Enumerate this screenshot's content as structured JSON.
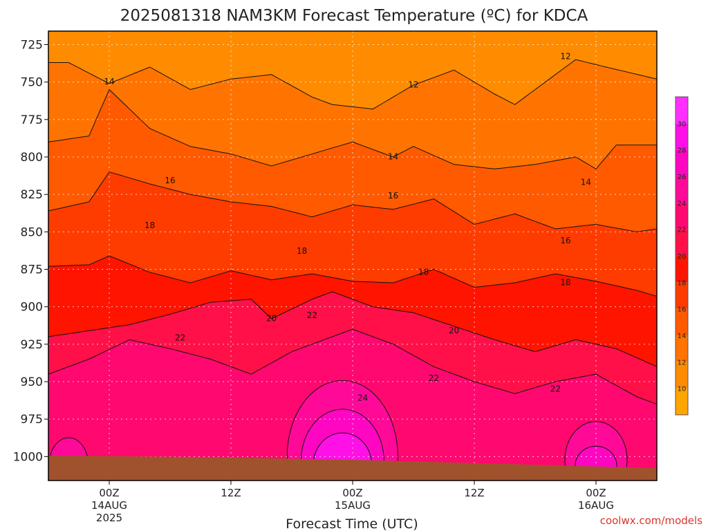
{
  "chart_data": {
    "type": "heatmap",
    "title": "2025081318 NAM3KM Forecast Temperature (ºC) for KDCA",
    "xlabel": "Forecast Time (UTC)",
    "ylabel": "",
    "y_ticks": [
      "725",
      "750",
      "775",
      "800",
      "825",
      "850",
      "875",
      "900",
      "925",
      "950",
      "975",
      "1000"
    ],
    "y_tick_values": [
      725,
      750,
      775,
      800,
      825,
      850,
      875,
      900,
      925,
      950,
      975,
      1000
    ],
    "ylim": [
      1016,
      716
    ],
    "x_ticks": [
      {
        "hours": 6,
        "line1": "00Z",
        "line2": "14AUG",
        "line3": "2025"
      },
      {
        "hours": 18,
        "line1": "12Z",
        "line2": "",
        "line3": ""
      },
      {
        "hours": 30,
        "line1": "00Z",
        "line2": "15AUG",
        "line3": ""
      },
      {
        "hours": 42,
        "line1": "12Z",
        "line2": "",
        "line3": ""
      },
      {
        "hours": 54,
        "line1": "00Z",
        "line2": "16AUG",
        "line3": ""
      }
    ],
    "xlim_hours": [
      0,
      60
    ],
    "x_is_forecast_hours_from": "2025081318",
    "grid": true,
    "colorbar": {
      "ticks": [
        "10",
        "12",
        "14",
        "16",
        "18",
        "20",
        "22",
        "24",
        "26",
        "28",
        "30"
      ],
      "tick_values": [
        10,
        12,
        14,
        16,
        18,
        20,
        22,
        24,
        26,
        28,
        30
      ],
      "range": [
        8,
        32
      ],
      "colors": [
        "#ffa500",
        "#ff8c00",
        "#ff7400",
        "#ff5a00",
        "#ff3c00",
        "#ff1400",
        "#ff1048",
        "#ff0870",
        "#ff0a98",
        "#ff06c2",
        "#ff10e6",
        "#ff30ff"
      ],
      "bounds": [
        8,
        10,
        12,
        14,
        16,
        18,
        20,
        22,
        24,
        26,
        28,
        30,
        32
      ]
    },
    "isotherms": [
      {
        "value": 12,
        "pressure": [
          737,
          751,
          740,
          755,
          748,
          745,
          760,
          765,
          768,
          752,
          742,
          758,
          765,
          745,
          735,
          740,
          748
        ],
        "hours": [
          2,
          6,
          10,
          14,
          18,
          22,
          26,
          28,
          32,
          36,
          40,
          44,
          46,
          50,
          52,
          55,
          60
        ]
      },
      {
        "value": 14,
        "pressure": [
          790,
          786,
          755,
          781,
          793,
          798,
          806,
          790,
          800,
          793,
          805,
          808,
          805,
          800,
          808,
          792,
          792
        ],
        "hours": [
          0,
          4,
          6,
          10,
          14,
          18,
          22,
          30,
          34,
          36,
          40,
          44,
          48,
          52,
          54,
          56,
          60
        ]
      },
      {
        "value": 16,
        "pressure": [
          836,
          830,
          810,
          818,
          825,
          830,
          833,
          840,
          832,
          835,
          828,
          845,
          838,
          848,
          845,
          850,
          848
        ],
        "hours": [
          0,
          4,
          6,
          10,
          14,
          18,
          22,
          26,
          30,
          34,
          38,
          42,
          46,
          50,
          54,
          58,
          60
        ]
      },
      {
        "value": 18,
        "pressure": [
          873,
          872,
          866,
          877,
          884,
          876,
          882,
          878,
          883,
          884,
          875,
          887,
          884,
          878,
          883,
          889,
          893
        ],
        "hours": [
          0,
          4,
          6,
          10,
          14,
          18,
          22,
          26,
          30,
          34,
          38,
          42,
          46,
          50,
          54,
          58,
          60
        ]
      },
      {
        "value": 20,
        "pressure": [
          920,
          916,
          912,
          905,
          897,
          895,
          908,
          895,
          890,
          900,
          904,
          913,
          922,
          930,
          922,
          928,
          940
        ],
        "hours": [
          0,
          4,
          8,
          12,
          16,
          20,
          22,
          26,
          28,
          32,
          36,
          40,
          44,
          48,
          52,
          56,
          60
        ]
      },
      {
        "value": 22,
        "pressure": [
          945,
          935,
          922,
          928,
          935,
          945,
          930,
          920,
          915,
          925,
          940,
          950,
          958,
          950,
          945,
          960,
          965
        ],
        "hours": [
          0,
          4,
          8,
          12,
          16,
          20,
          24,
          28,
          30,
          34,
          38,
          42,
          46,
          50,
          54,
          58,
          60
        ]
      }
    ],
    "contour_labels": [
      {
        "text": "12",
        "hours": 36,
        "pressure": 752
      },
      {
        "text": "12",
        "hours": 51,
        "pressure": 733
      },
      {
        "text": "14",
        "hours": 6,
        "pressure": 750
      },
      {
        "text": "14",
        "hours": 34,
        "pressure": 800
      },
      {
        "text": "14",
        "hours": 53,
        "pressure": 817
      },
      {
        "text": "16",
        "hours": 12,
        "pressure": 816
      },
      {
        "text": "16",
        "hours": 34,
        "pressure": 826
      },
      {
        "text": "16",
        "hours": 51,
        "pressure": 856
      },
      {
        "text": "18",
        "hours": 10,
        "pressure": 846
      },
      {
        "text": "18",
        "hours": 25,
        "pressure": 863
      },
      {
        "text": "18",
        "hours": 37,
        "pressure": 877
      },
      {
        "text": "18",
        "hours": 51,
        "pressure": 884
      },
      {
        "text": "20",
        "hours": 22,
        "pressure": 908
      },
      {
        "text": "20",
        "hours": 40,
        "pressure": 916
      },
      {
        "text": "22",
        "hours": 13,
        "pressure": 921
      },
      {
        "text": "22",
        "hours": 26,
        "pressure": 906
      },
      {
        "text": "22",
        "hours": 38,
        "pressure": 948
      },
      {
        "text": "22",
        "hours": 50,
        "pressure": 955
      },
      {
        "text": "24",
        "hours": 31,
        "pressure": 961
      }
    ]
  },
  "watermark": "coolwx.com/models",
  "colors": {
    "ground": "#a0522d",
    "grid": "#ffffff",
    "contour": "#111111"
  }
}
